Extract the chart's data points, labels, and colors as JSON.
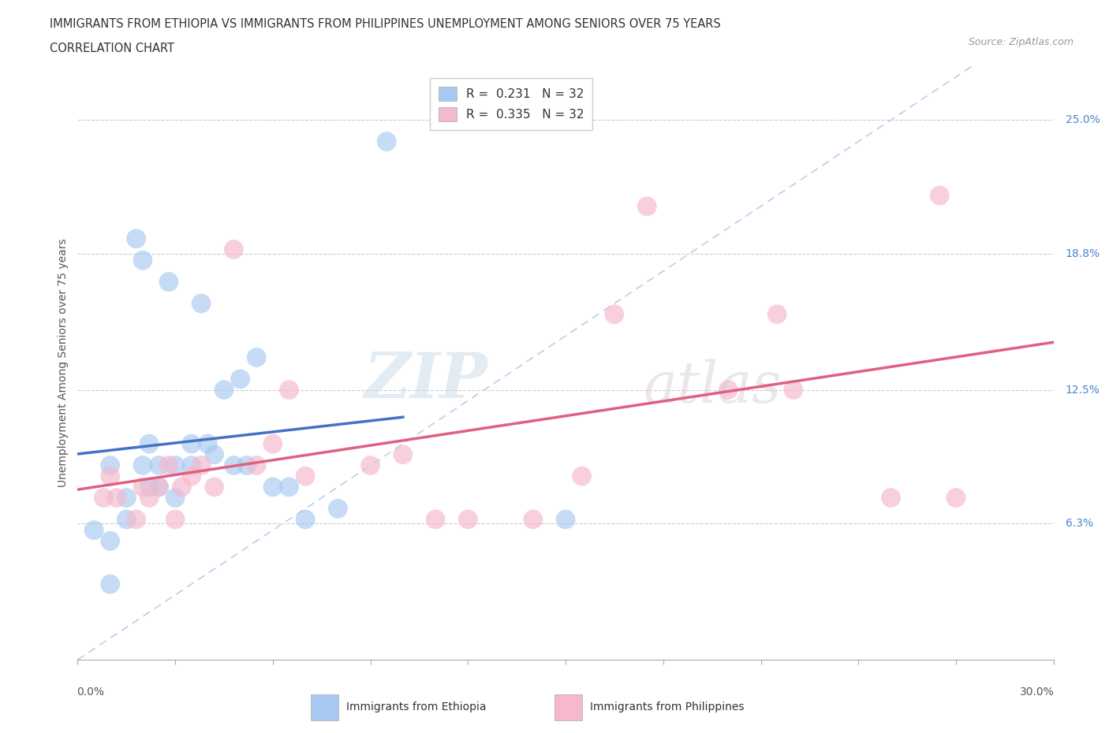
{
  "title_line1": "IMMIGRANTS FROM ETHIOPIA VS IMMIGRANTS FROM PHILIPPINES UNEMPLOYMENT AMONG SENIORS OVER 75 YEARS",
  "title_line2": "CORRELATION CHART",
  "source_text": "Source: ZipAtlas.com",
  "ylabel": "Unemployment Among Seniors over 75 years",
  "xlim": [
    0.0,
    0.3
  ],
  "ylim": [
    0.0,
    0.275
  ],
  "ytick_values": [
    0.063,
    0.125,
    0.188,
    0.25
  ],
  "ytick_labels": [
    "6.3%",
    "12.5%",
    "18.8%",
    "25.0%"
  ],
  "blue_color": "#a8c8f0",
  "pink_color": "#f5b8cc",
  "blue_line_color": "#4472c4",
  "pink_line_color": "#e06080",
  "dashed_line_color": "#b8d0ec",
  "ethiopia_x": [
    0.005,
    0.01,
    0.01,
    0.01,
    0.015,
    0.015,
    0.018,
    0.02,
    0.02,
    0.022,
    0.022,
    0.025,
    0.025,
    0.028,
    0.03,
    0.03,
    0.035,
    0.035,
    0.038,
    0.04,
    0.042,
    0.045,
    0.048,
    0.05,
    0.052,
    0.055,
    0.06,
    0.065,
    0.07,
    0.08,
    0.095,
    0.15
  ],
  "ethiopia_y": [
    0.06,
    0.09,
    0.055,
    0.035,
    0.075,
    0.065,
    0.195,
    0.185,
    0.09,
    0.1,
    0.08,
    0.09,
    0.08,
    0.175,
    0.09,
    0.075,
    0.1,
    0.09,
    0.165,
    0.1,
    0.095,
    0.125,
    0.09,
    0.13,
    0.09,
    0.14,
    0.08,
    0.08,
    0.065,
    0.07,
    0.24,
    0.065
  ],
  "philippines_x": [
    0.008,
    0.01,
    0.012,
    0.018,
    0.02,
    0.022,
    0.025,
    0.028,
    0.03,
    0.032,
    0.035,
    0.038,
    0.042,
    0.048,
    0.055,
    0.06,
    0.065,
    0.07,
    0.09,
    0.1,
    0.11,
    0.12,
    0.14,
    0.155,
    0.165,
    0.175,
    0.2,
    0.215,
    0.22,
    0.25,
    0.265,
    0.27
  ],
  "philippines_y": [
    0.075,
    0.085,
    0.075,
    0.065,
    0.08,
    0.075,
    0.08,
    0.09,
    0.065,
    0.08,
    0.085,
    0.09,
    0.08,
    0.19,
    0.09,
    0.1,
    0.125,
    0.085,
    0.09,
    0.095,
    0.065,
    0.065,
    0.065,
    0.085,
    0.16,
    0.21,
    0.125,
    0.16,
    0.125,
    0.075,
    0.215,
    0.075
  ]
}
